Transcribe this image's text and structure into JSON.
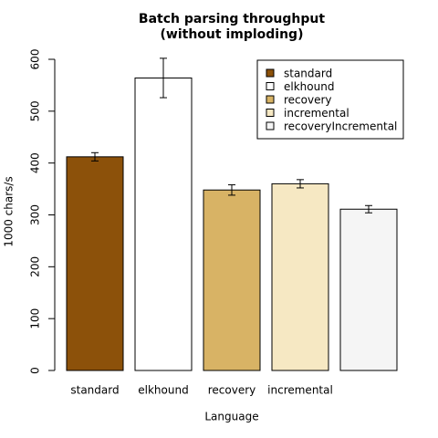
{
  "chart_data": {
    "type": "bar",
    "title": "Batch parsing throughput",
    "subtitle": "(without imploding)",
    "x_label": "Language",
    "y_label": "1000 chars/s",
    "categories": [
      "standard",
      "elkhound",
      "recovery",
      "incremental",
      null
    ],
    "values": [
      412,
      564,
      348,
      360,
      311
    ],
    "errors": [
      8,
      38,
      10,
      8,
      7
    ],
    "colors": [
      "#8c510a",
      "#ffffff",
      "#d8b365",
      "#f6e8c3",
      "#f5f5f5"
    ],
    "legend": [
      "standard",
      "elkhound",
      "recovery",
      "incremental",
      "recoveryIncremental"
    ],
    "legend_position": "top-right",
    "ylim": [
      0,
      600
    ],
    "yticks": [
      0,
      100,
      200,
      300,
      400,
      500,
      600
    ]
  }
}
